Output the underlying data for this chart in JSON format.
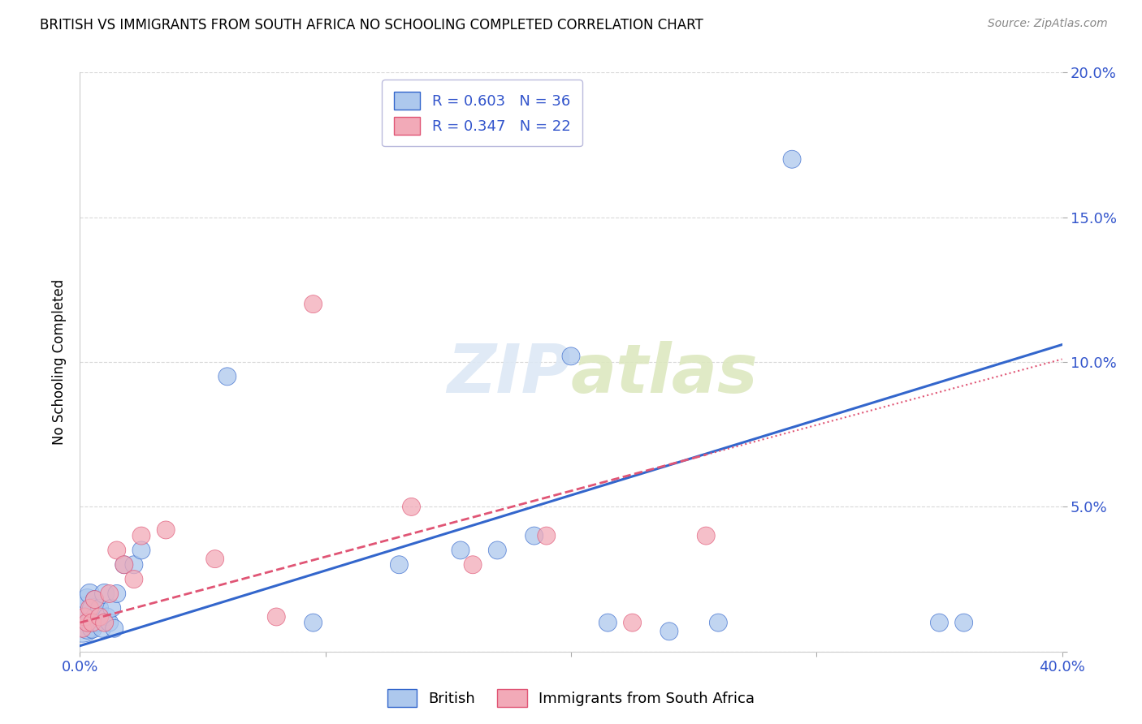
{
  "title": "BRITISH VS IMMIGRANTS FROM SOUTH AFRICA NO SCHOOLING COMPLETED CORRELATION CHART",
  "source": "Source: ZipAtlas.com",
  "ylabel": "No Schooling Completed",
  "xlim": [
    0.0,
    0.4
  ],
  "ylim": [
    0.0,
    0.2
  ],
  "xticks": [
    0.0,
    0.1,
    0.2,
    0.3,
    0.4
  ],
  "yticks": [
    0.0,
    0.05,
    0.1,
    0.15,
    0.2
  ],
  "xtick_labels": [
    "0.0%",
    "",
    "",
    "",
    "40.0%"
  ],
  "ytick_labels": [
    "",
    "5.0%",
    "10.0%",
    "15.0%",
    "20.0%"
  ],
  "british_R": 0.603,
  "british_N": 36,
  "southafrica_R": 0.347,
  "southafrica_N": 22,
  "british_color": "#adc8ed",
  "southafrica_color": "#f2aab8",
  "british_line_color": "#3366cc",
  "southafrica_line_color": "#e05575",
  "background_color": "#ffffff",
  "grid_color": "#d0d0d0",
  "legend_text_color": "#3355cc",
  "british_x": [
    0.001,
    0.002,
    0.002,
    0.003,
    0.003,
    0.004,
    0.004,
    0.005,
    0.005,
    0.006,
    0.006,
    0.007,
    0.008,
    0.009,
    0.01,
    0.011,
    0.012,
    0.013,
    0.014,
    0.015,
    0.018,
    0.022,
    0.025,
    0.06,
    0.095,
    0.13,
    0.155,
    0.17,
    0.185,
    0.2,
    0.215,
    0.24,
    0.26,
    0.29,
    0.35,
    0.36
  ],
  "british_y": [
    0.01,
    0.012,
    0.015,
    0.008,
    0.018,
    0.01,
    0.02,
    0.008,
    0.015,
    0.012,
    0.018,
    0.01,
    0.015,
    0.008,
    0.02,
    0.012,
    0.01,
    0.015,
    0.008,
    0.02,
    0.03,
    0.03,
    0.035,
    0.095,
    0.01,
    0.03,
    0.035,
    0.035,
    0.04,
    0.102,
    0.01,
    0.007,
    0.01,
    0.17,
    0.01,
    0.01
  ],
  "british_sizes": [
    1200,
    500,
    400,
    350,
    350,
    300,
    300,
    300,
    300,
    250,
    250,
    250,
    250,
    250,
    300,
    250,
    250,
    250,
    250,
    250,
    250,
    250,
    250,
    250,
    250,
    250,
    250,
    250,
    250,
    250,
    250,
    250,
    250,
    250,
    250,
    250
  ],
  "southafrica_x": [
    0.001,
    0.002,
    0.003,
    0.004,
    0.005,
    0.006,
    0.008,
    0.01,
    0.012,
    0.015,
    0.018,
    0.022,
    0.025,
    0.035,
    0.055,
    0.08,
    0.095,
    0.135,
    0.16,
    0.19,
    0.225,
    0.255
  ],
  "southafrica_y": [
    0.008,
    0.012,
    0.01,
    0.015,
    0.01,
    0.018,
    0.012,
    0.01,
    0.02,
    0.035,
    0.03,
    0.025,
    0.04,
    0.042,
    0.032,
    0.012,
    0.12,
    0.05,
    0.03,
    0.04,
    0.01,
    0.04
  ],
  "southafrica_sizes": [
    250,
    250,
    250,
    250,
    250,
    250,
    250,
    250,
    250,
    250,
    250,
    250,
    250,
    250,
    250,
    250,
    250,
    250,
    250,
    250,
    250,
    250
  ],
  "british_line_x": [
    0.0,
    0.4
  ],
  "british_line_y": [
    0.002,
    0.106
  ],
  "southafrica_line_x": [
    0.0,
    0.255
  ],
  "southafrica_line_y": [
    0.01,
    0.068
  ]
}
